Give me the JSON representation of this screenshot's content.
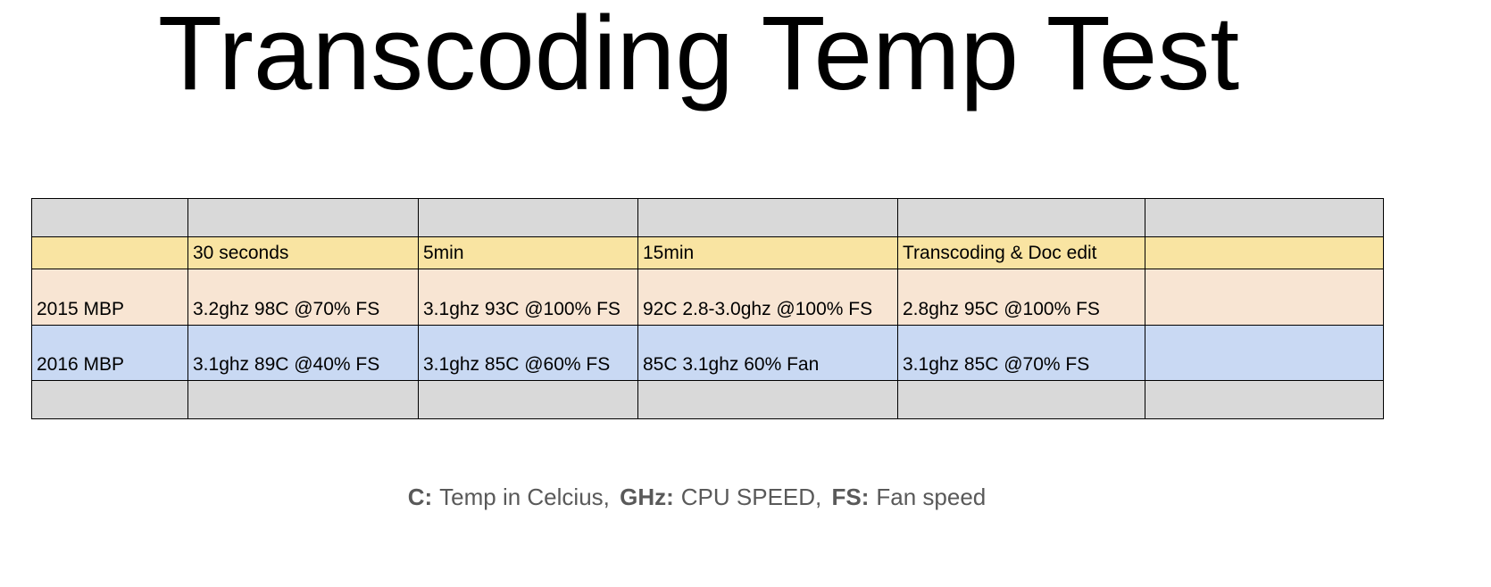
{
  "title": "Transcoding Temp Test",
  "table": {
    "columns": [
      "30 seconds",
      "5min",
      "15min",
      "Transcoding & Doc edit"
    ],
    "rows": [
      {
        "label": "2015 MBP",
        "cells": [
          "3.2ghz 98C @70% FS",
          "3.1ghz 93C @100% FS",
          "92C 2.8-3.0ghz @100% FS",
          "2.8ghz 95C @100% FS"
        ]
      },
      {
        "label": "2016 MBP",
        "cells": [
          "3.1ghz 89C @40% FS",
          "3.1ghz 85C @60% FS",
          "85C 3.1ghz 60% Fan",
          "3.1ghz 85C @70% FS"
        ]
      }
    ]
  },
  "legend": [
    {
      "key": "C:",
      "text": "Temp in Celcius,"
    },
    {
      "key": "GHz:",
      "text": "CPU SPEED,"
    },
    {
      "key": "FS:",
      "text": "Fan speed"
    }
  ]
}
